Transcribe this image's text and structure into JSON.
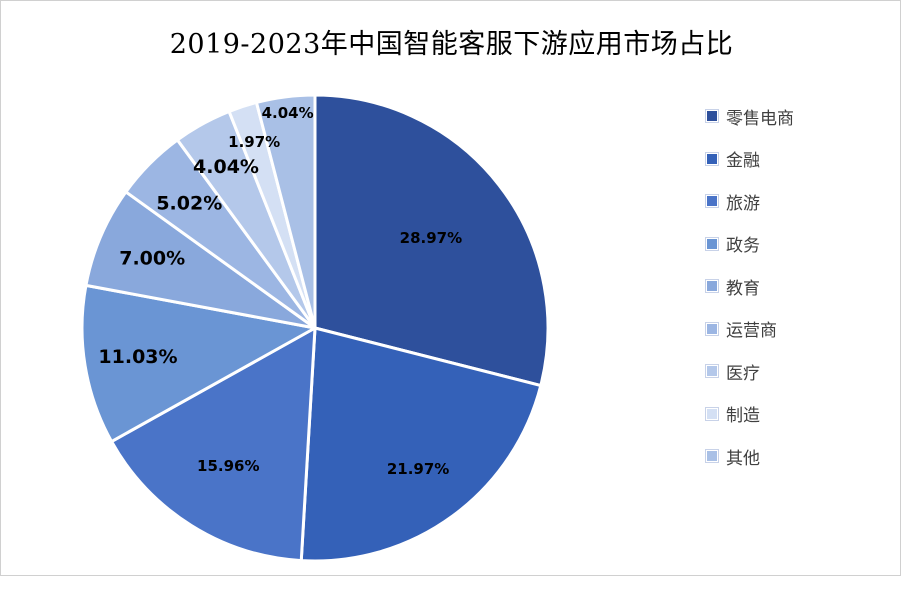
{
  "chart_data": {
    "type": "pie",
    "title": "2019-2023年中国智能客服下游应用市场占比",
    "categories": [
      "零售电商",
      "金融",
      "旅游",
      "政务",
      "教育",
      "运营商",
      "医疗",
      "制造",
      "其他"
    ],
    "values": [
      28.97,
      21.97,
      15.96,
      11.03,
      7.0,
      5.02,
      4.04,
      1.97,
      4.04
    ],
    "labels": [
      "28.97%",
      "21.97%",
      "15.96%",
      "11.03%",
      "7.00%",
      "5.02%",
      "4.04%",
      "1.97%",
      "4.04%"
    ],
    "colors": [
      "#2e509c",
      "#3461b8",
      "#4a74c8",
      "#6a95d4",
      "#89a8dc",
      "#9cb6e3",
      "#b4c8ea",
      "#d4e0f4",
      "#a9c0e6"
    ],
    "legend_position": "right",
    "start_angle": "12 o'clock",
    "direction": "clockwise"
  }
}
